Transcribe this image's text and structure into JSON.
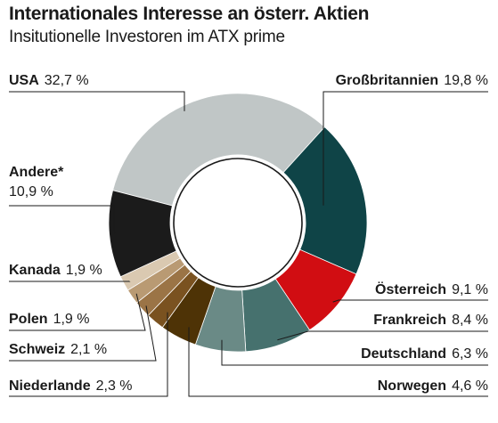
{
  "chart_data": {
    "type": "pie",
    "title": "Internationales Interesse an österr. Aktien",
    "subtitle": "Insitutionelle Investoren im ATX prime",
    "slices": [
      {
        "label": "USA",
        "value_text": "32,7 %",
        "value": 32.7,
        "color": "#c0c6c6"
      },
      {
        "label": "Großbritannien",
        "value_text": "19,8 %",
        "value": 19.8,
        "color": "#0f4447"
      },
      {
        "label": "Österreich",
        "value_text": "9,1 %",
        "value": 9.1,
        "color": "#d10d12"
      },
      {
        "label": "Frankreich",
        "value_text": "8,4 %",
        "value": 8.4,
        "color": "#46716e"
      },
      {
        "label": "Deutschland",
        "value_text": "6,3 %",
        "value": 6.3,
        "color": "#6a8a86"
      },
      {
        "label": "Norwegen",
        "value_text": "4,6 %",
        "value": 4.6,
        "color": "#4e3306"
      },
      {
        "label": "Niederlande",
        "value_text": "2,3 %",
        "value": 2.3,
        "color": "#7a5220"
      },
      {
        "label": "Schweiz",
        "value_text": "2,1 %",
        "value": 2.1,
        "color": "#9b7446"
      },
      {
        "label": "Polen",
        "value_text": "1,9 %",
        "value": 1.9,
        "color": "#b99a73"
      },
      {
        "label": "Kanada",
        "value_text": "1,9 %",
        "value": 1.9,
        "color": "#dac9b1"
      },
      {
        "label": "Andere*",
        "value_text": "10,9 %",
        "value": 10.9,
        "color": "#1b1b1b"
      }
    ]
  }
}
